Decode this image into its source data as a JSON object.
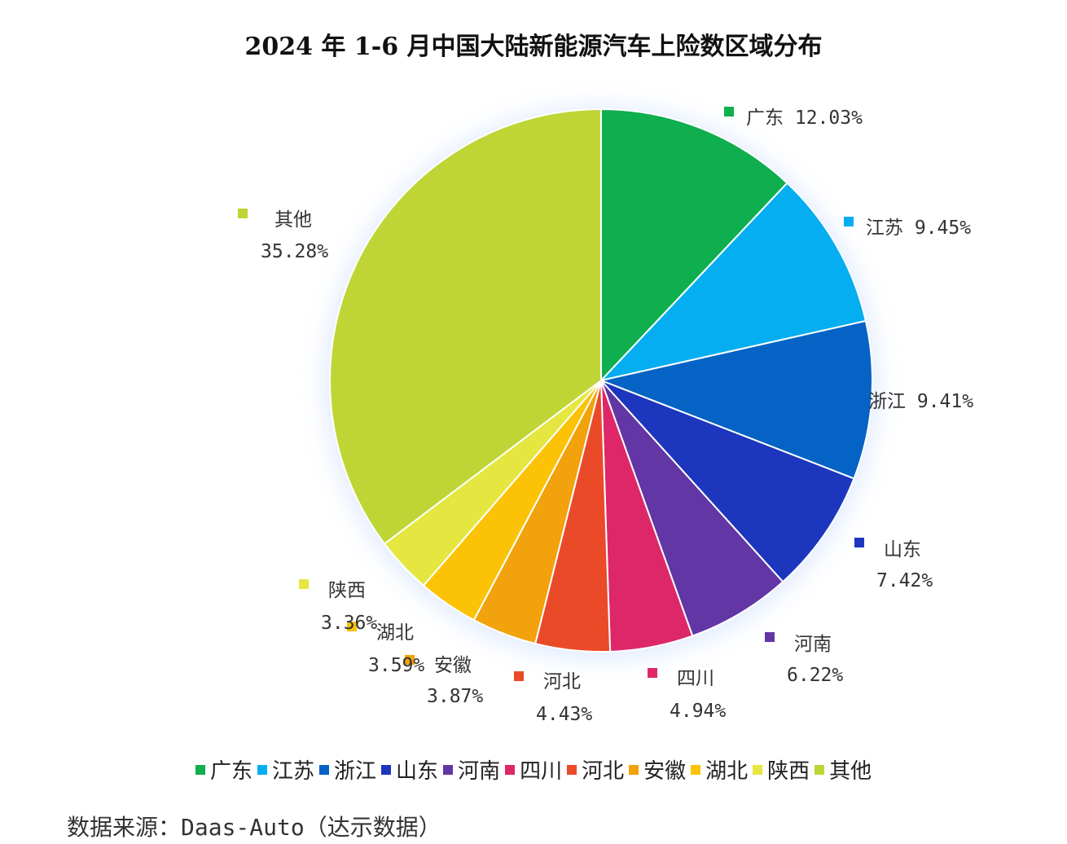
{
  "chart_data": {
    "type": "pie",
    "title": "2024 年 1-6 月中国大陆新能源汽车上险数区域分布",
    "unit": "%",
    "slices": [
      {
        "name": "广东",
        "value": 12.03,
        "label": "12.03%",
        "color": "#0fae4f"
      },
      {
        "name": "江苏",
        "value": 9.45,
        "label": "9.45%",
        "color": "#05aef0"
      },
      {
        "name": "浙江",
        "value": 9.41,
        "label": "9.41%",
        "color": "#0463c4"
      },
      {
        "name": "山东",
        "value": 7.42,
        "label": "7.42%",
        "color": "#1c36be"
      },
      {
        "name": "河南",
        "value": 6.22,
        "label": "6.22%",
        "color": "#6236a5"
      },
      {
        "name": "四川",
        "value": 4.94,
        "label": "4.94%",
        "color": "#de2768"
      },
      {
        "name": "河北",
        "value": 4.43,
        "label": "4.43%",
        "color": "#ea4a28"
      },
      {
        "name": "安徽",
        "value": 3.87,
        "label": "3.87%",
        "color": "#f2a20c"
      },
      {
        "name": "湖北",
        "value": 3.59,
        "label": "3.59%",
        "color": "#fcc206"
      },
      {
        "name": "陕西",
        "value": 3.36,
        "label": "3.36%",
        "color": "#e6e640"
      },
      {
        "name": "其他",
        "value": 35.28,
        "label": "35.28%",
        "color": "#bed535"
      }
    ],
    "legend": {
      "placement": "bottom"
    }
  },
  "source": "数据来源：Daas-Auto（达示数据）"
}
